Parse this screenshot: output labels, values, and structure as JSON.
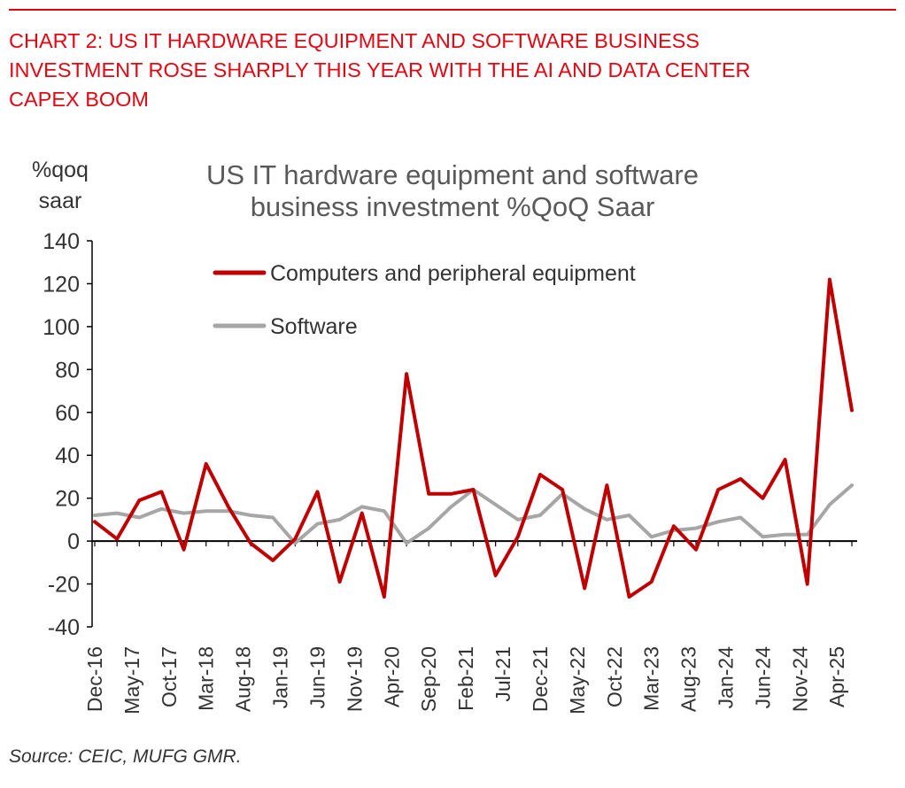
{
  "heading_lines": [
    "CHART 2: US IT HARDWARE EQUIPMENT AND SOFTWARE BUSINESS",
    "INVESTMENT ROSE SHARPLY THIS YEAR WITH THE AI AND DATA CENTER",
    "CAPEX BOOM"
  ],
  "source": "Source: CEIC, MUFG GMR.",
  "colors": {
    "heading": "#e30613",
    "computers": "#c00000",
    "software": "#a6a6a6"
  },
  "chart_data": {
    "type": "line",
    "title_lines": [
      "US IT hardware equipment and software",
      "business investment %QoQ Saar"
    ],
    "ylabel_lines": [
      "%qoq",
      "saar"
    ],
    "xlabel": "",
    "ylim": [
      -40,
      140
    ],
    "yticks": [
      -40,
      -20,
      0,
      20,
      40,
      60,
      80,
      100,
      120,
      140
    ],
    "grid": false,
    "legend_position": "top-center",
    "categories": [
      "Dec-16",
      "Mar-17",
      "Jun-17",
      "Sep-17",
      "Dec-17",
      "Mar-18",
      "Jun-18",
      "Sep-18",
      "Dec-18",
      "Mar-19",
      "Jun-19",
      "Sep-19",
      "Dec-19",
      "Mar-20",
      "Jun-20",
      "Sep-20",
      "Dec-20",
      "Mar-21",
      "Jun-21",
      "Sep-21",
      "Dec-21",
      "Mar-22",
      "Jun-22",
      "Sep-22",
      "Dec-22",
      "Mar-23",
      "Jun-23",
      "Sep-23",
      "Dec-23",
      "Mar-24",
      "Jun-24",
      "Sep-24",
      "Dec-24",
      "Mar-25",
      "Jun-25"
    ],
    "tick_labels": [
      "Dec-16",
      "May-17",
      "Oct-17",
      "Mar-18",
      "Aug-18",
      "Jan-19",
      "Jun-19",
      "Nov-19",
      "Apr-20",
      "Sep-20",
      "Feb-21",
      "Jul-21",
      "Dec-21",
      "May-22",
      "Oct-22",
      "Mar-23",
      "Aug-23",
      "Jan-24",
      "Jun-24",
      "Nov-24",
      "Apr-25"
    ],
    "tick_month_index": [
      0,
      5,
      10,
      15,
      20,
      25,
      30,
      35,
      40,
      45,
      50,
      55,
      60,
      65,
      70,
      75,
      80,
      85,
      90,
      95,
      100
    ],
    "series": [
      {
        "name": "Computers and peripheral equipment",
        "values": [
          9,
          1,
          19,
          23,
          -4,
          36,
          16,
          -1,
          -9,
          1,
          23,
          -19,
          13,
          -26,
          78,
          22,
          22,
          24,
          -16,
          2,
          31,
          24,
          -22,
          26,
          -26,
          -19,
          7,
          -4,
          24,
          29,
          20,
          38,
          -20,
          122,
          61
        ]
      },
      {
        "name": "Software",
        "values": [
          12,
          13,
          11,
          15,
          13,
          14,
          14,
          12,
          11,
          -1,
          8,
          10,
          16,
          14,
          -1,
          6,
          16,
          24,
          17,
          10,
          12,
          22,
          15,
          10,
          12,
          2,
          5,
          6,
          9,
          11,
          2,
          3,
          3,
          17,
          26
        ]
      }
    ]
  }
}
